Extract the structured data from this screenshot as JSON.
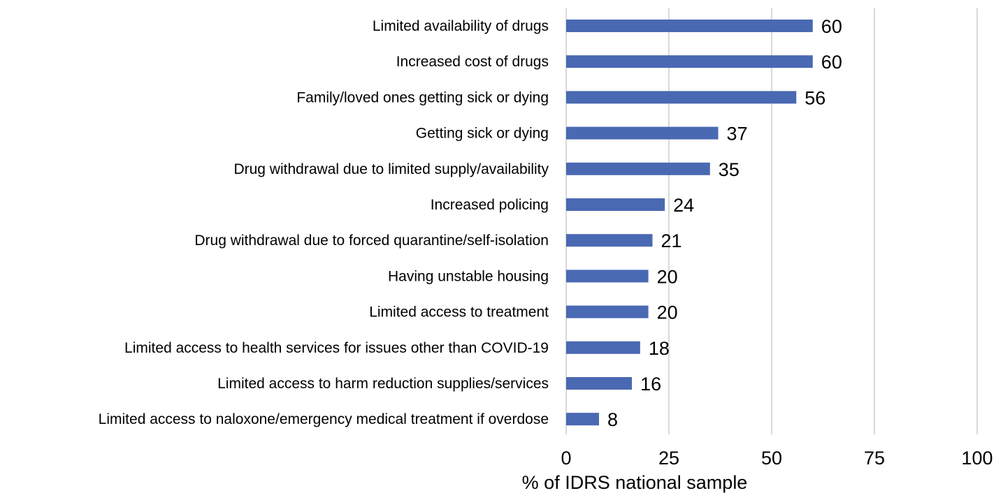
{
  "chart_data": {
    "type": "bar",
    "orientation": "horizontal",
    "title": "",
    "xlabel": "% of IDRS national sample",
    "ylabel": "",
    "xlim": [
      0,
      100
    ],
    "xticks": [
      0,
      25,
      50,
      75,
      100
    ],
    "grid": true,
    "bar_color": "#4a69b3",
    "categories": [
      "Limited availability of drugs",
      "Increased cost of drugs",
      "Family/loved ones getting sick or dying",
      "Getting sick or dying",
      "Drug withdrawal due to limited supply/availability",
      "Increased policing",
      "Drug withdrawal due to forced quarantine/self-isolation",
      "Having unstable housing",
      "Limited access to treatment",
      "Limited access to health services for issues other than COVID-19",
      "Limited access to harm reduction supplies/services",
      "Limited access to naloxone/emergency medical treatment if overdose"
    ],
    "values": [
      60,
      60,
      56,
      37,
      35,
      24,
      21,
      20,
      20,
      18,
      16,
      8
    ]
  }
}
